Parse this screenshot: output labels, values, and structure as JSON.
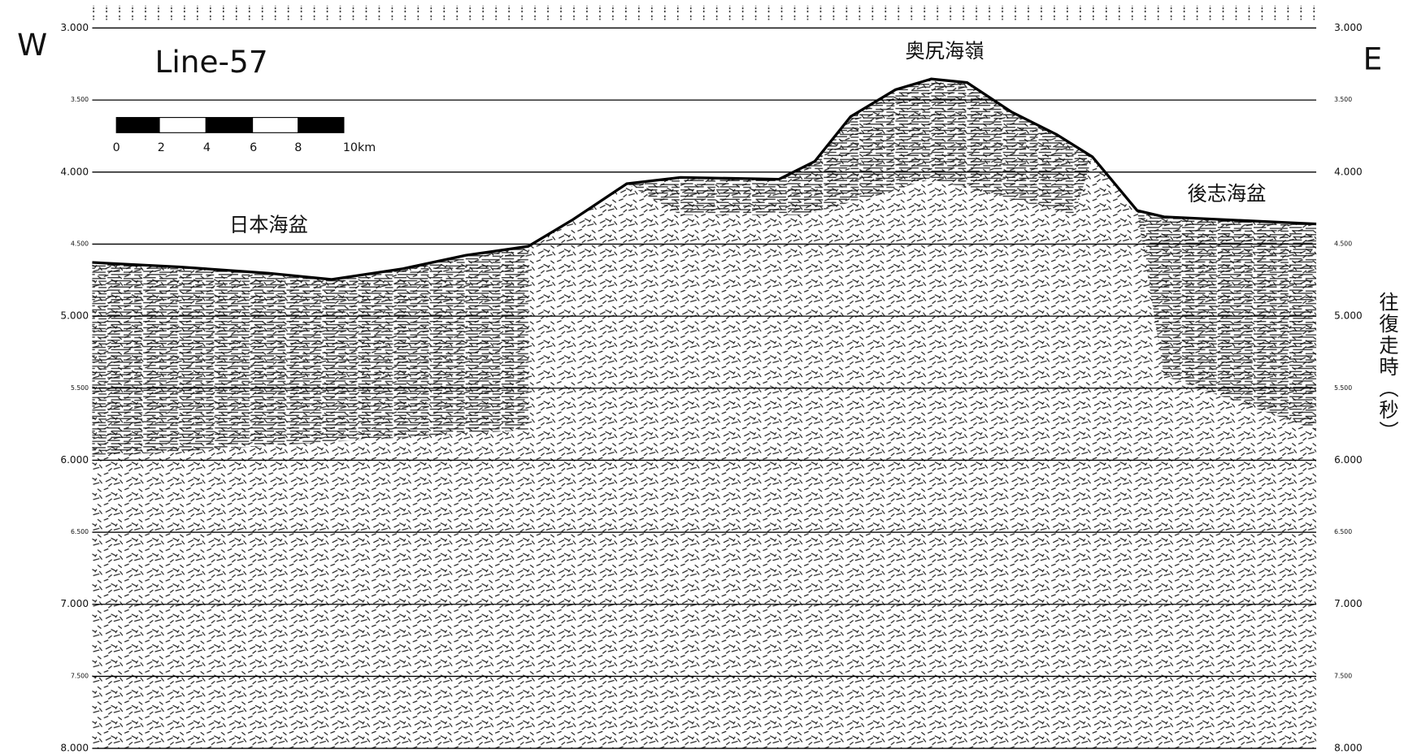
{
  "header": {
    "west": "W",
    "east": "E",
    "line_name": "Line-57"
  },
  "labels": {
    "ridge": "奥尻海嶺",
    "west_basin": "日本海盆",
    "east_basin": "後志海盆"
  },
  "axis": {
    "title": "往復走時（秒）",
    "ylim": [
      3,
      8
    ],
    "yticks": [
      {
        "value": 3,
        "label": "3.000"
      },
      {
        "value": 3.5,
        "label": "3.500"
      },
      {
        "value": 4,
        "label": "4.000"
      },
      {
        "value": 4.5,
        "label": "4.500"
      },
      {
        "value": 5,
        "label": "5.000"
      },
      {
        "value": 5.5,
        "label": "5.500"
      },
      {
        "value": 6,
        "label": "6.000"
      },
      {
        "value": 6.5,
        "label": "6.500"
      },
      {
        "value": 7,
        "label": "7.000"
      },
      {
        "value": 7.5,
        "label": "7.500"
      },
      {
        "value": 8,
        "label": "8.000"
      }
    ]
  },
  "scale_bar": {
    "labels": [
      "0",
      "2",
      "4",
      "6",
      "8",
      "10km"
    ]
  }
}
